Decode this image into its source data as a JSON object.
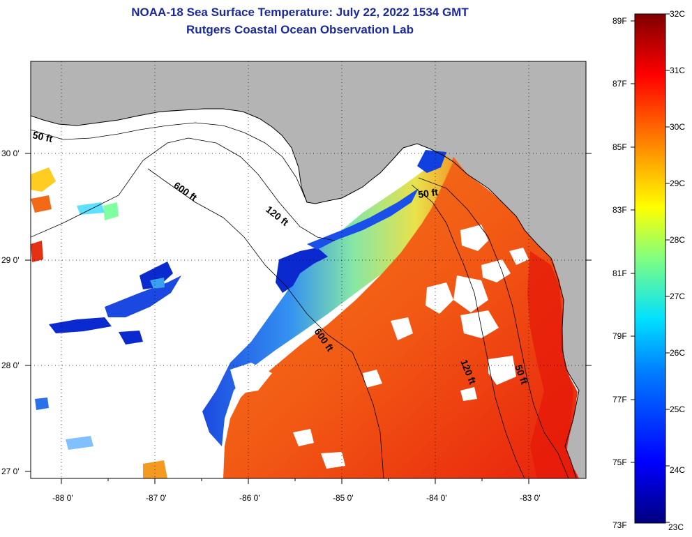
{
  "header": {
    "title": "NOAA-18 Sea Surface Temperature:  July 22, 2022 1534 GMT",
    "subtitle": "Rutgers Coastal Ocean Observation Lab"
  },
  "axes": {
    "longitude_labels": [
      "-88 0'",
      "-87 0'",
      "-86 0'",
      "-85 0'",
      "-84 0'",
      "-83 0'"
    ],
    "latitude_labels": [
      "30 0'",
      "29 0'",
      "28 0'",
      "27 0'"
    ]
  },
  "contours": {
    "labels": [
      "50 ft",
      "600 ft",
      "120 ft",
      "50 ft",
      "600 ft",
      "120 ft",
      "50 ft"
    ]
  },
  "colorbar": {
    "fahrenheit_labels": [
      "89F",
      "87F",
      "85F",
      "83F",
      "81F",
      "79F",
      "77F",
      "75F",
      "73F"
    ],
    "celsius_labels": [
      "32C",
      "31C",
      "30C",
      "29C",
      "28C",
      "27C",
      "26C",
      "25C",
      "24C",
      "23C"
    ]
  },
  "colors": {
    "land": "#b4b4b4",
    "title": "#1a2a9c",
    "warm": "#f26a18",
    "cold": "#0a2ad0"
  }
}
